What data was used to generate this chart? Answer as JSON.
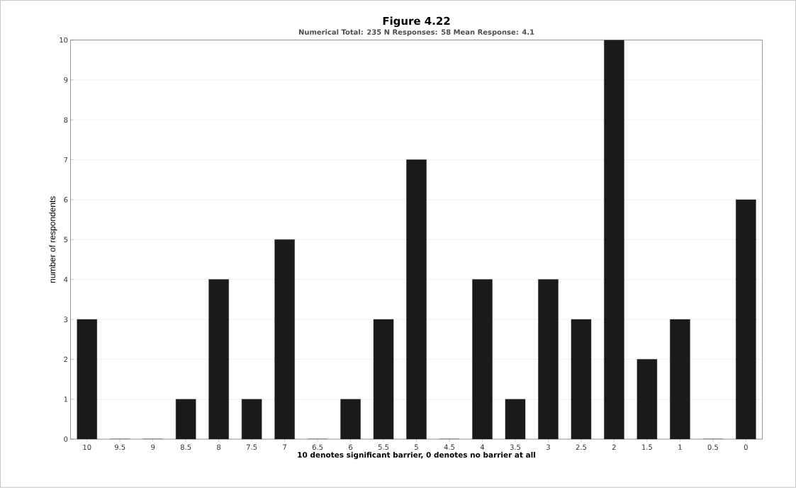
{
  "chart_data": {
    "type": "bar",
    "title": "Figure 4.22",
    "subtitle": "Numerical Total: 235   N Responses: 58   Mean Response: 4.1",
    "xlabel": "10 denotes significant barrier, 0 denotes no barrier at all",
    "ylabel": "number of respondents",
    "categories": [
      "10",
      "9.5",
      "9",
      "8.5",
      "8",
      "7.5",
      "7",
      "6.5",
      "6",
      "5.5",
      "5",
      "4.5",
      "4",
      "3.5",
      "3",
      "2.5",
      "2",
      "1.5",
      "1",
      "0.5",
      "0"
    ],
    "values": [
      3,
      0,
      0,
      1,
      4,
      1,
      5,
      0,
      1,
      3,
      7,
      0,
      4,
      1,
      4,
      3,
      10,
      2,
      3,
      0,
      6
    ],
    "color": "#1a1a1a",
    "ylim": [
      0,
      10
    ],
    "yticks": [
      0,
      1,
      2,
      3,
      4,
      5,
      6,
      7,
      8,
      9,
      10
    ],
    "grid": "y"
  }
}
